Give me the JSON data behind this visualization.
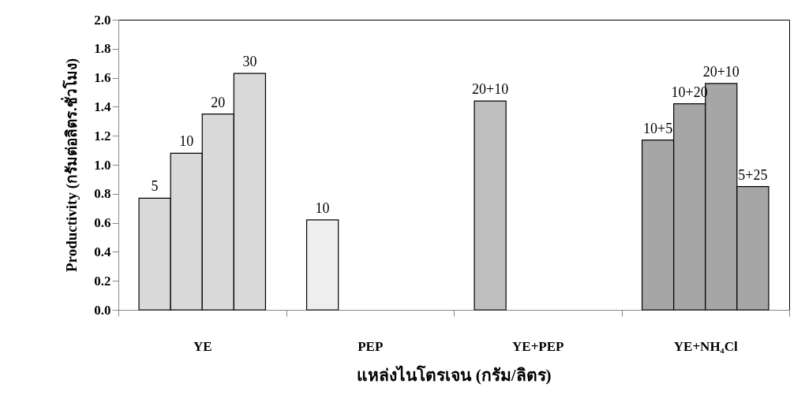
{
  "chart_data": {
    "type": "bar",
    "xlabel": "แหล่งไนโตรเจน (กรัม/ลิตร)",
    "ylabel": "Productivity (กรัมต่อลิตร.ชั่วโมง)",
    "categories": [
      "YE",
      "PEP",
      "YE+PEP",
      "YE+NH₄Cl"
    ],
    "series": [
      {
        "name": "5",
        "color": "#d9d9d9",
        "values": [
          0.77,
          null,
          null,
          null
        ]
      },
      {
        "name": "10",
        "color": "#d9d9d9",
        "values": [
          1.08,
          null,
          null,
          null
        ]
      },
      {
        "name": "20",
        "color": "#d9d9d9",
        "values": [
          1.35,
          null,
          null,
          null
        ]
      },
      {
        "name": "30",
        "color": "#d9d9d9",
        "values": [
          1.63,
          null,
          null,
          null
        ]
      },
      {
        "name": "10",
        "color": "#eeeeee",
        "values": [
          null,
          0.62,
          null,
          null
        ]
      },
      {
        "name": "20+10",
        "color": "#bfbfbf",
        "values": [
          null,
          null,
          1.44,
          null
        ]
      },
      {
        "name": "10+5",
        "color": "#a6a6a6",
        "values": [
          null,
          null,
          null,
          1.17
        ]
      },
      {
        "name": "10+20",
        "color": "#a6a6a6",
        "values": [
          null,
          null,
          null,
          1.42
        ]
      },
      {
        "name": "20+10",
        "color": "#a6a6a6",
        "values": [
          null,
          null,
          null,
          1.56
        ]
      },
      {
        "name": "5+25",
        "color": "#a6a6a6",
        "values": [
          null,
          null,
          null,
          0.85
        ]
      }
    ],
    "ylim": [
      0,
      2.0
    ],
    "yticks": [
      {
        "value": 0,
        "label": "0.0"
      },
      {
        "value": 0.2,
        "label": "0.2"
      },
      {
        "value": 0.4,
        "label": "0.4"
      },
      {
        "value": 0.6,
        "label": "0.6"
      },
      {
        "value": 0.8,
        "label": "0.8"
      },
      {
        "value": 1.0,
        "label": "1.0"
      },
      {
        "value": 1.2,
        "label": "1.2"
      },
      {
        "value": 1.4,
        "label": "1.4"
      },
      {
        "value": 1.6,
        "label": "1.6"
      },
      {
        "value": 1.8,
        "label": "1.8"
      },
      {
        "value": 2.0,
        "label": "2.0"
      }
    ],
    "grid": false
  }
}
